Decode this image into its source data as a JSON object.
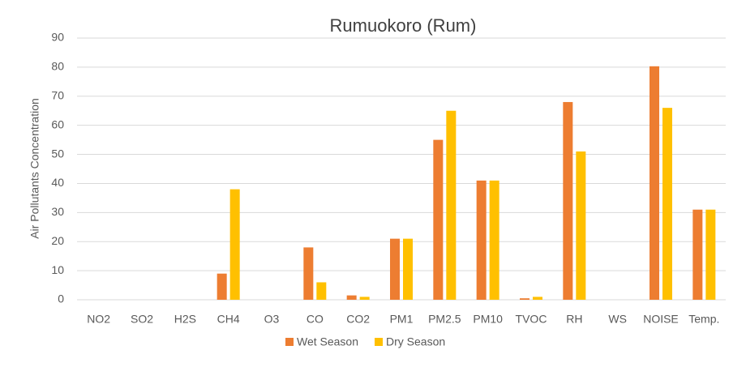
{
  "chart_data": {
    "type": "bar",
    "title": "Rumuokoro (Rum)",
    "y_label": "Air Pollutants Concentration",
    "categories": [
      "NO2",
      "SO2",
      "H2S",
      "CH4",
      "O3",
      "CO",
      "CO2",
      "PM1",
      "PM2.5",
      "PM10",
      "TVOC",
      "RH",
      "WS",
      "NOISE",
      "Temp."
    ],
    "series": [
      {
        "name": "Wet Season",
        "color": "#ed7d31",
        "values": [
          0,
          0,
          0,
          9,
          0,
          18,
          1.5,
          21,
          55,
          41,
          0.5,
          68,
          0,
          80.3,
          31
        ]
      },
      {
        "name": "Dry Season",
        "color": "#ffc000",
        "values": [
          0,
          0,
          0,
          38,
          0,
          6,
          1,
          21,
          65,
          41,
          1,
          51,
          0,
          66,
          31
        ]
      }
    ],
    "ylim": [
      0,
      90
    ],
    "yticks": [
      0,
      10,
      20,
      30,
      40,
      50,
      60,
      70,
      80,
      90
    ],
    "grid": true,
    "legend": "bottom"
  }
}
